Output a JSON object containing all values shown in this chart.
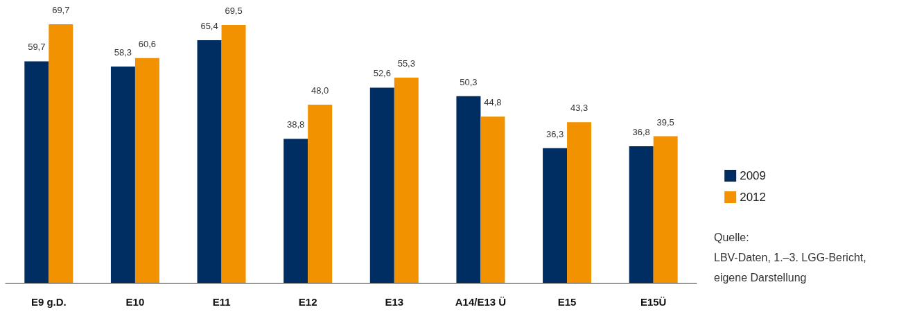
{
  "chart_data": {
    "type": "bar",
    "categories": [
      "E9 g.D.",
      "E10",
      "E11",
      "E12",
      "E13",
      "A14/E13 Ü",
      "E15",
      "E15Ü"
    ],
    "series": [
      {
        "name": "2009",
        "color": "#002d62",
        "values": [
          59.7,
          58.3,
          65.4,
          38.8,
          52.6,
          50.3,
          36.3,
          36.8
        ],
        "value_labels": [
          "59,7",
          "58,3",
          "65,4",
          "38,8",
          "52,6",
          "50,3",
          "36,3",
          "36,8"
        ]
      },
      {
        "name": "2012",
        "color": "#f39200",
        "values": [
          69.7,
          60.6,
          69.5,
          48.0,
          55.3,
          44.8,
          43.3,
          39.5
        ],
        "value_labels": [
          "69,7",
          "60,6",
          "69,5",
          "48,0",
          "55,3",
          "44,8",
          "43,3",
          "39,5"
        ]
      }
    ],
    "legend": "right",
    "tick_labels": "x",
    "annotations": [
      "Quelle:\nLBV-Daten, 1.–3. LGG-Bericht,\neigene Darstellung"
    ]
  }
}
